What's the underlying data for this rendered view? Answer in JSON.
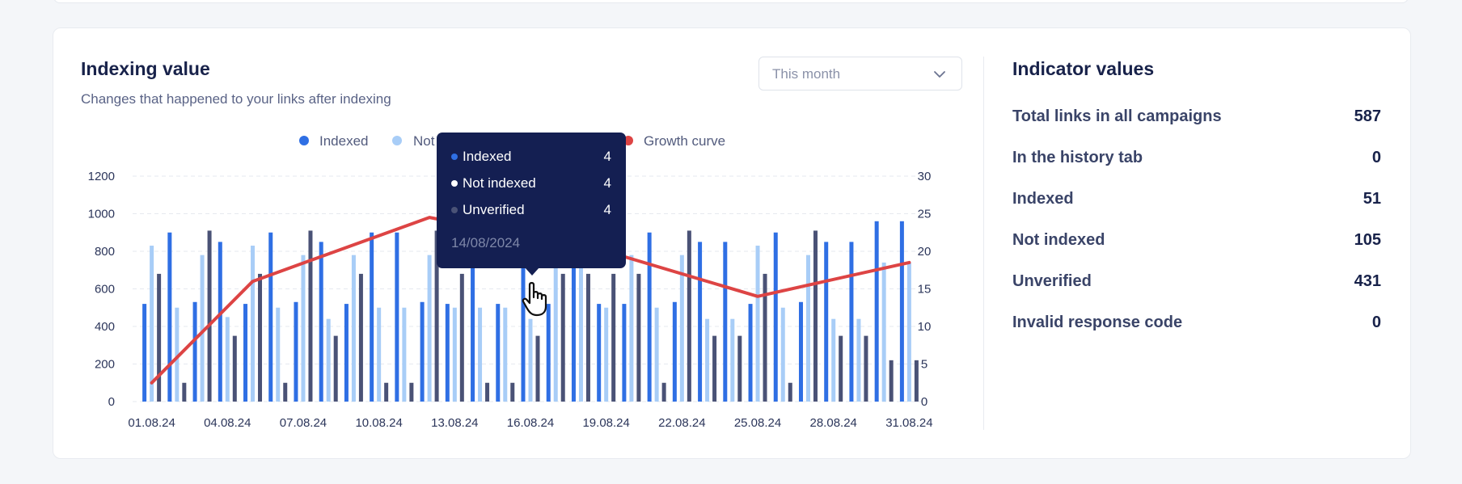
{
  "header": {
    "title": "Indexing value",
    "subtitle": "Changes that happened to your links after indexing"
  },
  "period_select": {
    "value": "This month",
    "icon": "chevron-down-icon"
  },
  "legend": {
    "indexed": "Indexed",
    "not_indexed_partial": "Not",
    "growth_curve": "Growth curve"
  },
  "colors": {
    "indexed": "#2f6fe4",
    "not_indexed": "#a8cdf7",
    "unverified": "#4a5276",
    "growth": "#dd4444",
    "tooltip_bg": "#141f52"
  },
  "tooltip": {
    "rows": [
      {
        "label": "Indexed",
        "value": "4",
        "dot_color": "#2f6fe4"
      },
      {
        "label": "Not indexed",
        "value": "4",
        "dot_color": "#ffffff"
      },
      {
        "label": "Unverified",
        "value": "4",
        "dot_color": "#4a5276"
      }
    ],
    "date": "14/08/2024"
  },
  "indicators": {
    "title": "Indicator values",
    "items": [
      {
        "label": "Total links in all campaigns",
        "value": "587"
      },
      {
        "label": "In the history tab",
        "value": "0"
      },
      {
        "label": "Indexed",
        "value": "51"
      },
      {
        "label": "Not indexed",
        "value": "105"
      },
      {
        "label": "Unverified",
        "value": "431"
      },
      {
        "label": "Invalid response code",
        "value": "0"
      }
    ]
  },
  "chart_data": {
    "type": "bar",
    "categories": [
      "01.08.24",
      "02.08.24",
      "03.08.24",
      "04.08.24",
      "05.08.24",
      "06.08.24",
      "07.08.24",
      "08.08.24",
      "09.08.24",
      "10.08.24",
      "11.08.24",
      "12.08.24",
      "13.08.24",
      "14.08.24",
      "15.08.24",
      "16.08.24",
      "17.08.24",
      "18.08.24",
      "19.08.24",
      "20.08.24",
      "21.08.24",
      "22.08.24",
      "23.08.24",
      "24.08.24",
      "25.08.24",
      "26.08.24",
      "27.08.24",
      "28.08.24",
      "29.08.24",
      "30.08.24",
      "31.08.24"
    ],
    "x_tick_labels": [
      "01.08.24",
      "04.08.24",
      "07.08.24",
      "10.08.24",
      "13.08.24",
      "16.08.24",
      "19.08.24",
      "22.08.24",
      "25.08.24",
      "28.08.24",
      "31.08.24"
    ],
    "series": [
      {
        "name": "Indexed",
        "axis": "left",
        "values": [
          520,
          900,
          530,
          850,
          520,
          900,
          530,
          850,
          520,
          900,
          900,
          530,
          520,
          900,
          520,
          900,
          520,
          900,
          520,
          520,
          900,
          530,
          850,
          850,
          520,
          900,
          530,
          850,
          850,
          960,
          960
        ]
      },
      {
        "name": "Not indexed",
        "axis": "left",
        "values": [
          830,
          500,
          780,
          450,
          830,
          500,
          780,
          440,
          780,
          500,
          500,
          780,
          500,
          500,
          500,
          440,
          780,
          830,
          500,
          780,
          500,
          780,
          440,
          440,
          830,
          500,
          780,
          440,
          440,
          740,
          740
        ]
      },
      {
        "name": "Unverified",
        "axis": "left",
        "values": [
          680,
          100,
          910,
          350,
          680,
          100,
          910,
          350,
          680,
          100,
          100,
          910,
          680,
          100,
          100,
          350,
          680,
          680,
          680,
          680,
          100,
          910,
          350,
          350,
          680,
          100,
          910,
          350,
          350,
          220,
          220
        ]
      },
      {
        "name": "Growth curve",
        "axis": "right",
        "type": "line",
        "x": [
          "01.08.24",
          "05.08.24",
          "12.08.24",
          "19.08.24",
          "25.08.24",
          "31.08.24"
        ],
        "values": [
          2.5,
          16,
          24.5,
          20,
          14,
          18.5
        ]
      }
    ],
    "y_left": {
      "min": 0,
      "max": 1200,
      "ticks": [
        0,
        200,
        400,
        600,
        800,
        1000,
        1200
      ]
    },
    "y_right": {
      "min": 0,
      "max": 30,
      "ticks": [
        0,
        5,
        10,
        15,
        20,
        25,
        30
      ]
    },
    "grid": true,
    "legend_position": "top-center"
  }
}
